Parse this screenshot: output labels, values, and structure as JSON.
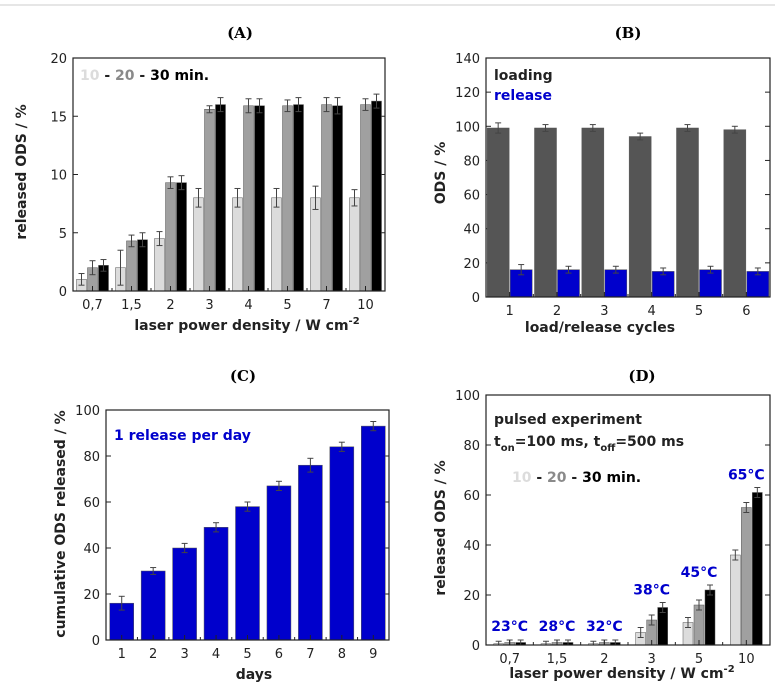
{
  "colors": {
    "light": "#dcdcdc",
    "mid": "#a0a0a0",
    "black": "#000000",
    "dark": "#555555",
    "blue": "#0000cc",
    "axis": "#222222"
  },
  "chart_data": [
    {
      "panel": "(A)",
      "type": "bar",
      "ylabel": "released ODS / %",
      "xlabel": "laser power density / W cm",
      "xlabel_sup": "-2",
      "ylim": [
        0,
        20
      ],
      "yticks": [
        "0",
        "5",
        "10",
        "15",
        "20"
      ],
      "categories": [
        "0,7",
        "1,5",
        "2",
        "3",
        "4",
        "5",
        "7",
        "10"
      ],
      "legend": {
        "a": "10",
        "sep1": " - ",
        "b": "20",
        "sep2": " - ",
        "c": "30 min."
      },
      "series": [
        {
          "name": "10",
          "color_key": "light",
          "values": [
            1.0,
            2.0,
            4.5,
            8.0,
            8.0,
            8.0,
            8.0,
            8.0
          ],
          "errors": [
            0.5,
            1.5,
            0.6,
            0.8,
            0.8,
            0.8,
            1.0,
            0.7
          ]
        },
        {
          "name": "20",
          "color_key": "mid",
          "values": [
            2.0,
            4.3,
            9.3,
            15.6,
            15.9,
            15.9,
            16.0,
            16.0
          ],
          "errors": [
            0.6,
            0.5,
            0.5,
            0.3,
            0.6,
            0.5,
            0.6,
            0.5
          ]
        },
        {
          "name": "30",
          "color_key": "black",
          "values": [
            2.2,
            4.4,
            9.3,
            16.0,
            15.9,
            16.0,
            15.9,
            16.3
          ],
          "errors": [
            0.5,
            0.6,
            0.6,
            0.6,
            0.6,
            0.6,
            0.7,
            0.6
          ]
        }
      ]
    },
    {
      "panel": "(B)",
      "type": "bar",
      "ylabel": "ODS / %",
      "xlabel": "load/release cycles",
      "ylim": [
        0,
        140
      ],
      "yticks": [
        "0",
        "20",
        "40",
        "60",
        "80",
        "100",
        "120",
        "140"
      ],
      "categories": [
        "1",
        "2",
        "3",
        "4",
        "5",
        "6"
      ],
      "legend": {
        "loading": "loading",
        "release": "release"
      },
      "series": [
        {
          "name": "loading",
          "color_key": "dark",
          "values": [
            99,
            99,
            99,
            94,
            99,
            98
          ],
          "errors": [
            3,
            2,
            2,
            2,
            2,
            2
          ]
        },
        {
          "name": "release",
          "color_key": "blue",
          "values": [
            16,
            16,
            16,
            15,
            16,
            15
          ],
          "errors": [
            3,
            2,
            2,
            2,
            2,
            2
          ]
        }
      ]
    },
    {
      "panel": "(C)",
      "type": "bar",
      "ylabel": "cumulative ODS  released / %",
      "xlabel": "days",
      "ylim": [
        0,
        100
      ],
      "yticks": [
        "0",
        "20",
        "40",
        "60",
        "80",
        "100"
      ],
      "categories": [
        "1",
        "2",
        "3",
        "4",
        "5",
        "6",
        "7",
        "8",
        "9"
      ],
      "annotation": "1 release per day",
      "series": [
        {
          "name": "",
          "color_key": "blue",
          "values": [
            16,
            30,
            40,
            49,
            58,
            67,
            76,
            84,
            93
          ],
          "errors": [
            3,
            1.5,
            2,
            2,
            2,
            2,
            3,
            2,
            2
          ]
        }
      ]
    },
    {
      "panel": "(D)",
      "type": "bar",
      "ylabel": "released ODS / %",
      "xlabel": "laser power density / W cm",
      "xlabel_sup": "-2",
      "ylim": [
        0,
        100
      ],
      "yticks": [
        "0",
        "20",
        "40",
        "60",
        "80",
        "100"
      ],
      "categories": [
        "0,7",
        "1,5",
        "2",
        "3",
        "5",
        "10"
      ],
      "annotation_line1": "pulsed experiment",
      "annotation_line2": {
        "t1": "t",
        "s1": "on",
        "v1": "=100 ms, t",
        "s2": "off",
        "v2": "=500 ms"
      },
      "legend": {
        "a": "10",
        "sep1": " - ",
        "b": "20",
        "sep2": " - ",
        "c": "30 min."
      },
      "temperatures": [
        "23°C",
        "28°C",
        "32°C",
        "38°C",
        "45°C",
        "65°C"
      ],
      "series": [
        {
          "name": "10",
          "color_key": "light",
          "values": [
            0.5,
            0.5,
            0.5,
            5,
            9,
            36
          ],
          "errors": [
            1,
            1,
            1,
            2,
            2,
            2
          ]
        },
        {
          "name": "20",
          "color_key": "mid",
          "values": [
            1,
            1,
            1,
            10,
            16,
            55
          ],
          "errors": [
            1,
            1,
            1,
            2,
            2,
            2
          ]
        },
        {
          "name": "30",
          "color_key": "black",
          "values": [
            1,
            1,
            1,
            15,
            22,
            61
          ],
          "errors": [
            1,
            1,
            1,
            2,
            2,
            2
          ]
        }
      ]
    }
  ]
}
